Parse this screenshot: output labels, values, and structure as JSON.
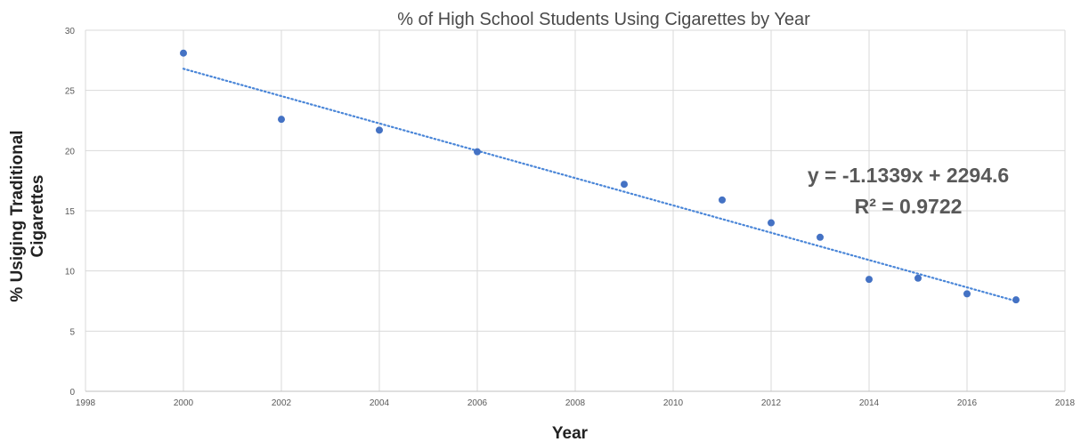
{
  "chart_data": {
    "type": "scatter",
    "title": "% of High School Students Using Cigarettes by Year",
    "xlabel": "Year",
    "ylabel": [
      "% Usiging Traditional",
      "Cigarettes"
    ],
    "xlim": [
      1998,
      2018
    ],
    "ylim": [
      0,
      30
    ],
    "x_ticks": [
      1998,
      2000,
      2002,
      2004,
      2006,
      2008,
      2010,
      2012,
      2014,
      2016,
      2018
    ],
    "y_ticks": [
      0,
      5,
      10,
      15,
      20,
      25,
      30
    ],
    "grid": true,
    "series": [
      {
        "x": [
          2000,
          2002,
          2004,
          2006,
          2009,
          2011,
          2012,
          2013,
          2014,
          2015,
          2016,
          2017
        ],
        "y": [
          28.1,
          22.6,
          21.7,
          19.9,
          17.2,
          15.9,
          14.0,
          12.8,
          9.3,
          9.4,
          8.1,
          7.6
        ],
        "color": "#4472c4"
      }
    ],
    "trendline": {
      "type": "linear",
      "slope": -1.1339,
      "intercept": 2294.6,
      "x_range": [
        2000,
        2017
      ],
      "y_range": [
        26.8,
        7.5
      ],
      "style": "dotted",
      "color": "#4a86d8"
    },
    "annotations": [
      "y = -1.1339x + 2294.6",
      "R² = 0.9722"
    ]
  }
}
